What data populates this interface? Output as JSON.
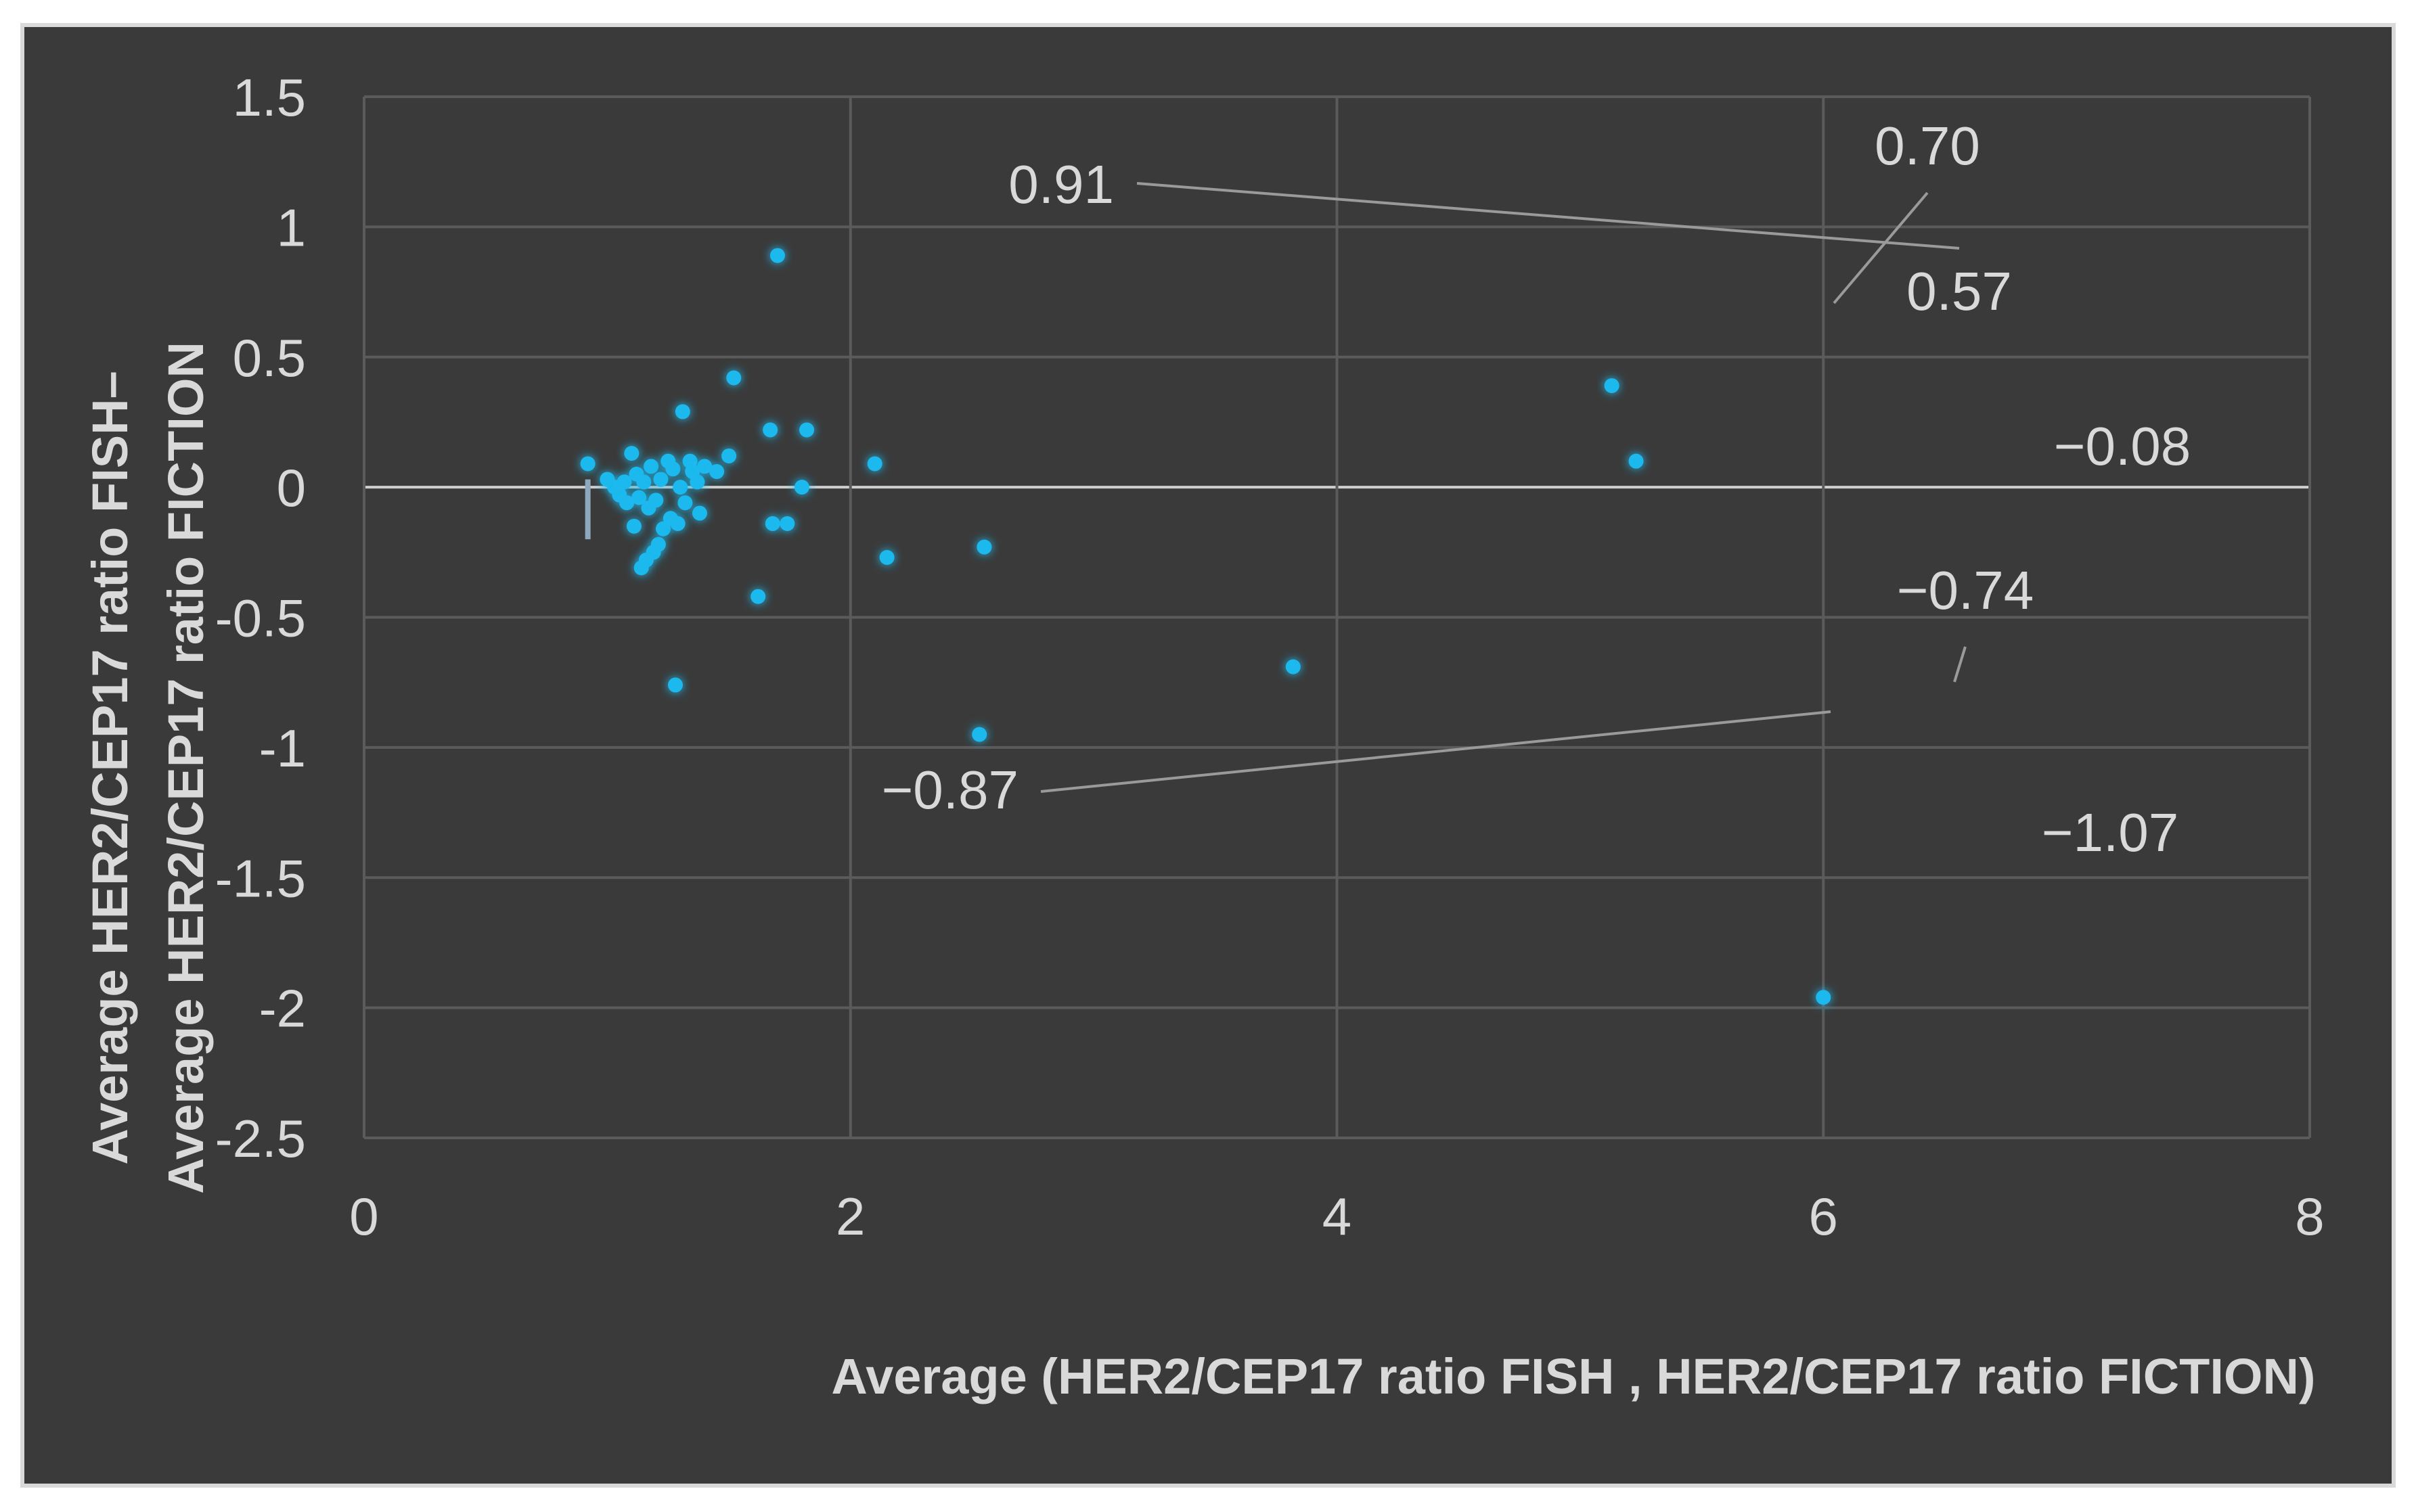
{
  "chart_data": {
    "type": "scatter",
    "xlabel": "Average (HER2/CEP17 ratio FISH , HER2/CEP17 ratio FICTION)",
    "ylabel_lines": [
      "Average HER2/CEP17 ratio FISH–",
      "Average HER2/CEP17 ratio FICTION"
    ],
    "xlim": [
      0,
      8
    ],
    "ylim": [
      -2.5,
      1.5
    ],
    "x_ticks": [
      "0",
      "2",
      "4",
      "6",
      "8"
    ],
    "y_ticks": [
      "1.5",
      "1",
      "0.5",
      "0",
      "-0.5",
      "-1",
      "-1.5",
      "-2",
      "-2.5"
    ],
    "grid": true,
    "points": [
      [
        0.92,
        0.09
      ],
      [
        1.0,
        0.03
      ],
      [
        1.03,
        0.0
      ],
      [
        1.05,
        -0.03
      ],
      [
        1.07,
        0.02
      ],
      [
        1.08,
        -0.06
      ],
      [
        1.1,
        0.13
      ],
      [
        1.11,
        -0.15
      ],
      [
        1.12,
        0.05
      ],
      [
        1.13,
        -0.04
      ],
      [
        1.14,
        -0.31
      ],
      [
        1.15,
        0.02
      ],
      [
        1.16,
        -0.28
      ],
      [
        1.17,
        -0.08
      ],
      [
        1.18,
        0.08
      ],
      [
        1.19,
        -0.25
      ],
      [
        1.2,
        -0.05
      ],
      [
        1.21,
        -0.22
      ],
      [
        1.22,
        0.03
      ],
      [
        1.23,
        -0.16
      ],
      [
        1.25,
        0.1
      ],
      [
        1.26,
        -0.12
      ],
      [
        1.27,
        0.07
      ],
      [
        1.28,
        -0.76
      ],
      [
        1.29,
        -0.14
      ],
      [
        1.3,
        0.0
      ],
      [
        1.31,
        0.29
      ],
      [
        1.32,
        -0.06
      ],
      [
        1.34,
        0.1
      ],
      [
        1.35,
        0.06
      ],
      [
        1.37,
        0.02
      ],
      [
        1.38,
        -0.1
      ],
      [
        1.4,
        0.08
      ],
      [
        1.45,
        0.06
      ],
      [
        1.5,
        0.12
      ],
      [
        1.52,
        0.42
      ],
      [
        1.62,
        -0.42
      ],
      [
        1.67,
        0.22
      ],
      [
        1.68,
        -0.14
      ],
      [
        1.7,
        0.89
      ],
      [
        1.74,
        -0.14
      ],
      [
        1.8,
        0.0
      ],
      [
        1.82,
        0.22
      ],
      [
        2.1,
        0.09
      ],
      [
        2.15,
        -0.27
      ],
      [
        2.53,
        -0.95
      ],
      [
        2.55,
        -0.23
      ],
      [
        3.82,
        -0.69
      ],
      [
        5.13,
        0.39
      ],
      [
        5.23,
        0.1
      ],
      [
        6.0,
        -1.96
      ]
    ],
    "reference_lines": [
      {
        "label": "0.70",
        "y": 0.7,
        "x_range": [
          0.92,
          6.0
        ]
      },
      {
        "label": "−0.08",
        "y": -0.08,
        "x_range": [
          0.92,
          7.0
        ]
      },
      {
        "label": "−0.87",
        "y": -0.87,
        "x_range": [
          0.92,
          6.0
        ]
      },
      {
        "label": "0.91",
        "y": 0.91,
        "x_range": [
          6.5,
          7.0
        ]
      },
      {
        "label": "0.57",
        "y": 0.57,
        "x_range": [
          6.0,
          6.5
        ]
      },
      {
        "label": "−0.74",
        "y": -0.74,
        "x_range": [
          6.0,
          6.5
        ]
      },
      {
        "label": "−1.07",
        "y": -1.07,
        "x_range": [
          6.5,
          7.0
        ]
      }
    ],
    "error_bar": {
      "x": 0.92,
      "y_low": -0.2,
      "y_high": 0.03
    },
    "colors": {
      "background": "#3a3a3a",
      "frame": "#d9d9d9",
      "grid": "#5b5b5b",
      "points": "#1fb9ee",
      "lines": "#8da8bc",
      "leader": "#9a9a9a",
      "text": "#d9d9d9"
    }
  }
}
